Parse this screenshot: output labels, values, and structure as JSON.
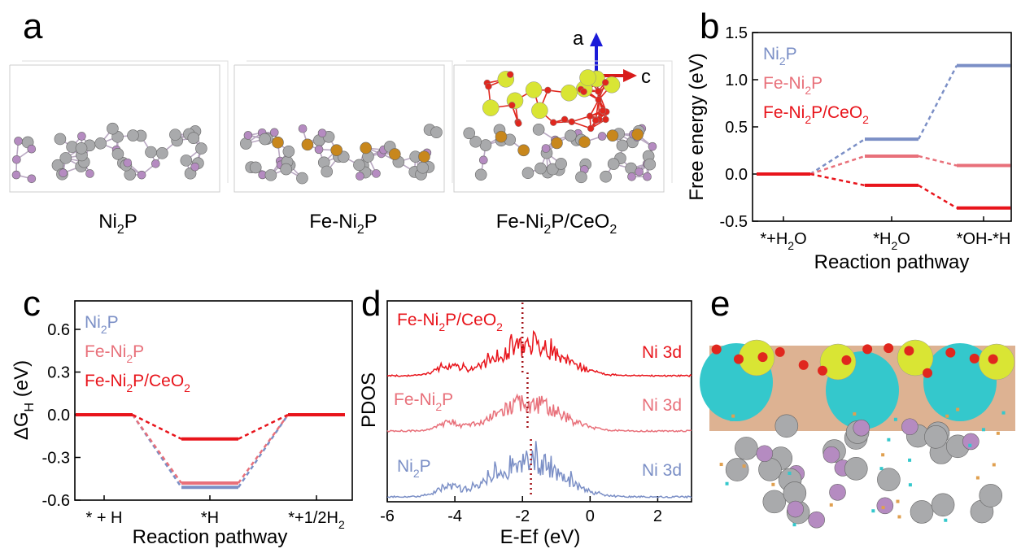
{
  "panel_letters": {
    "a": "a",
    "b": "b",
    "c": "c",
    "d": "d",
    "e": "e"
  },
  "colors": {
    "ni2p": "#7b8fc6",
    "feni2p": "#e8707a",
    "feni2p_ceo2": "#e8141b",
    "ni_atom": "#a9aaac",
    "p_atom": "#b58bc1",
    "fe_atom": "#c8871c",
    "o_atom": "#e0271e",
    "ce_atom": "#d9e534",
    "iso_cyan": "#34c8cc",
    "iso_tan": "#d7a47f"
  },
  "panel_a": {
    "axes": {
      "a": "a",
      "c": "c"
    },
    "labels": [
      {
        "base": "Ni",
        "sub": "2",
        "rest": "P",
        "tail": "",
        "tail_sub": ""
      },
      {
        "base": "Fe-Ni",
        "sub": "2",
        "rest": "P",
        "tail": "",
        "tail_sub": ""
      },
      {
        "base": "Fe-Ni",
        "sub": "2",
        "rest": "P/CeO",
        "tail": "",
        "tail_sub": "2"
      }
    ]
  },
  "chart_data": [
    {
      "panel": "b",
      "type": "line",
      "xlabel": "Reaction pathway",
      "ylabel": "Free energy (eV)",
      "ylim": [
        -0.5,
        1.5
      ],
      "yticks": [
        "-0.5",
        "0.0",
        "0.5",
        "1.0",
        "1.5"
      ],
      "categories": [
        {
          "base": "*+H",
          "sub": "2",
          "rest": "O"
        },
        {
          "base": "*H",
          "sub": "2",
          "rest": "O"
        },
        {
          "base": "*OH-*H",
          "sub": "",
          "rest": ""
        }
      ],
      "legend": [
        {
          "base": "Ni",
          "sub": "2",
          "rest": "P",
          "sub2": ""
        },
        {
          "base": "Fe-Ni",
          "sub": "2",
          "rest": "P",
          "sub2": ""
        },
        {
          "base": "Fe-Ni",
          "sub": "2",
          "rest": "P/CeO",
          "sub2": "2"
        }
      ],
      "series": [
        {
          "name": "Ni2P",
          "values": [
            0.0,
            0.37,
            1.15
          ]
        },
        {
          "name": "Fe-Ni2P",
          "values": [
            0.0,
            0.19,
            0.09
          ]
        },
        {
          "name": "Fe-Ni2P/CeO2",
          "values": [
            0.0,
            -0.12,
            -0.36
          ]
        }
      ]
    },
    {
      "panel": "c",
      "type": "line",
      "xlabel": "Reaction pathway",
      "ylabel": "ΔG",
      "ylabel_sub": "H",
      "ylabel_unit": " (eV)",
      "ylim": [
        -0.6,
        0.8
      ],
      "yticks": [
        "-0.6",
        "-0.3",
        "0.0",
        "0.3",
        "0.6"
      ],
      "categories": [
        {
          "base": "* + H",
          "sub": "",
          "rest": ""
        },
        {
          "base": "*H",
          "sub": "",
          "rest": ""
        },
        {
          "base": "*+1/2H",
          "sub": "2",
          "rest": ""
        }
      ],
      "legend": [
        {
          "base": "Ni",
          "sub": "2",
          "rest": "P",
          "sub2": ""
        },
        {
          "base": "Fe-Ni",
          "sub": "2",
          "rest": "P",
          "sub2": ""
        },
        {
          "base": "Fe-Ni",
          "sub": "2",
          "rest": "P/CeO",
          "sub2": "2"
        }
      ],
      "series": [
        {
          "name": "Ni2P",
          "values": [
            0.0,
            -0.51,
            0.0
          ]
        },
        {
          "name": "Fe-Ni2P",
          "values": [
            0.0,
            -0.48,
            0.0
          ]
        },
        {
          "name": "Fe-Ni2P/CeO2",
          "values": [
            0.0,
            -0.17,
            0.0
          ]
        }
      ]
    },
    {
      "panel": "d",
      "type": "line",
      "xlabel": "E-Ef (eV)",
      "ylabel": "PDOS",
      "xlim": [
        -6,
        3
      ],
      "xticks": [
        "-6",
        "-4",
        "-2",
        "0",
        "2"
      ],
      "orbital_label": "Ni 3d",
      "series": [
        {
          "name": "Fe-Ni2P/CeO2",
          "label": {
            "base": "Fe-Ni",
            "sub": "2",
            "rest": "P/CeO",
            "sub2": "2"
          },
          "fermi_marker": -2.0
        },
        {
          "name": "Fe-Ni2P",
          "label": {
            "base": "Fe-Ni",
            "sub": "2",
            "rest": "P",
            "sub2": ""
          },
          "fermi_marker": -1.85
        },
        {
          "name": "Ni2P",
          "label": {
            "base": "Ni",
            "sub": "2",
            "rest": "P",
            "sub2": ""
          },
          "fermi_marker": -1.75
        }
      ]
    }
  ]
}
